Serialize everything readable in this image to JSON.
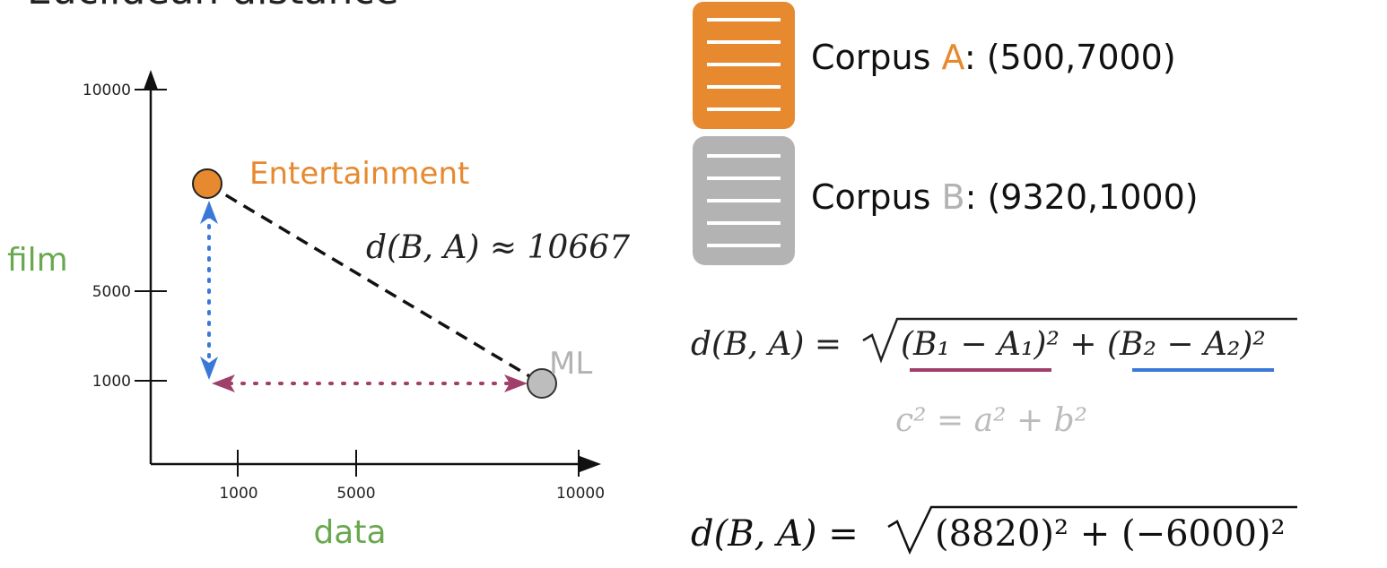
{
  "title": "Euclidean distance",
  "chart_data": {
    "type": "scatter",
    "xlabel": "data",
    "ylabel": "film",
    "x_ticks": [
      "1000",
      "5000",
      "10000"
    ],
    "y_ticks": [
      "10000",
      "5000",
      "1000"
    ],
    "points": [
      {
        "name": "Entertainment",
        "x": 500,
        "y": 7000
      },
      {
        "name": "ML",
        "x": 9320,
        "y": 1000
      }
    ],
    "distance_label": "d(B, A) ≈ 10667"
  },
  "corpus_a": {
    "prefix": "Corpus ",
    "letter": "A",
    "suffix": ": (500,7000)"
  },
  "corpus_b": {
    "prefix": "Corpus ",
    "letter": "B",
    "suffix": ": (9320,1000)"
  },
  "formula": {
    "lhs": "d(B, A) = ",
    "term1": "(B₁ − A₁)²",
    "plus": " + ",
    "term2": "(B₂ − A₂)²",
    "pythagoras": "c² = a² + b²",
    "numeric_lhs": "d(B, A) = ",
    "numeric_rhs": "(8820)² + (−6000)²"
  },
  "colors": {
    "orange": "#e6892f",
    "gray": "#b3b3b3",
    "green": "#6aa84f",
    "blue": "#3a78d8",
    "maroon": "#a0406a"
  }
}
